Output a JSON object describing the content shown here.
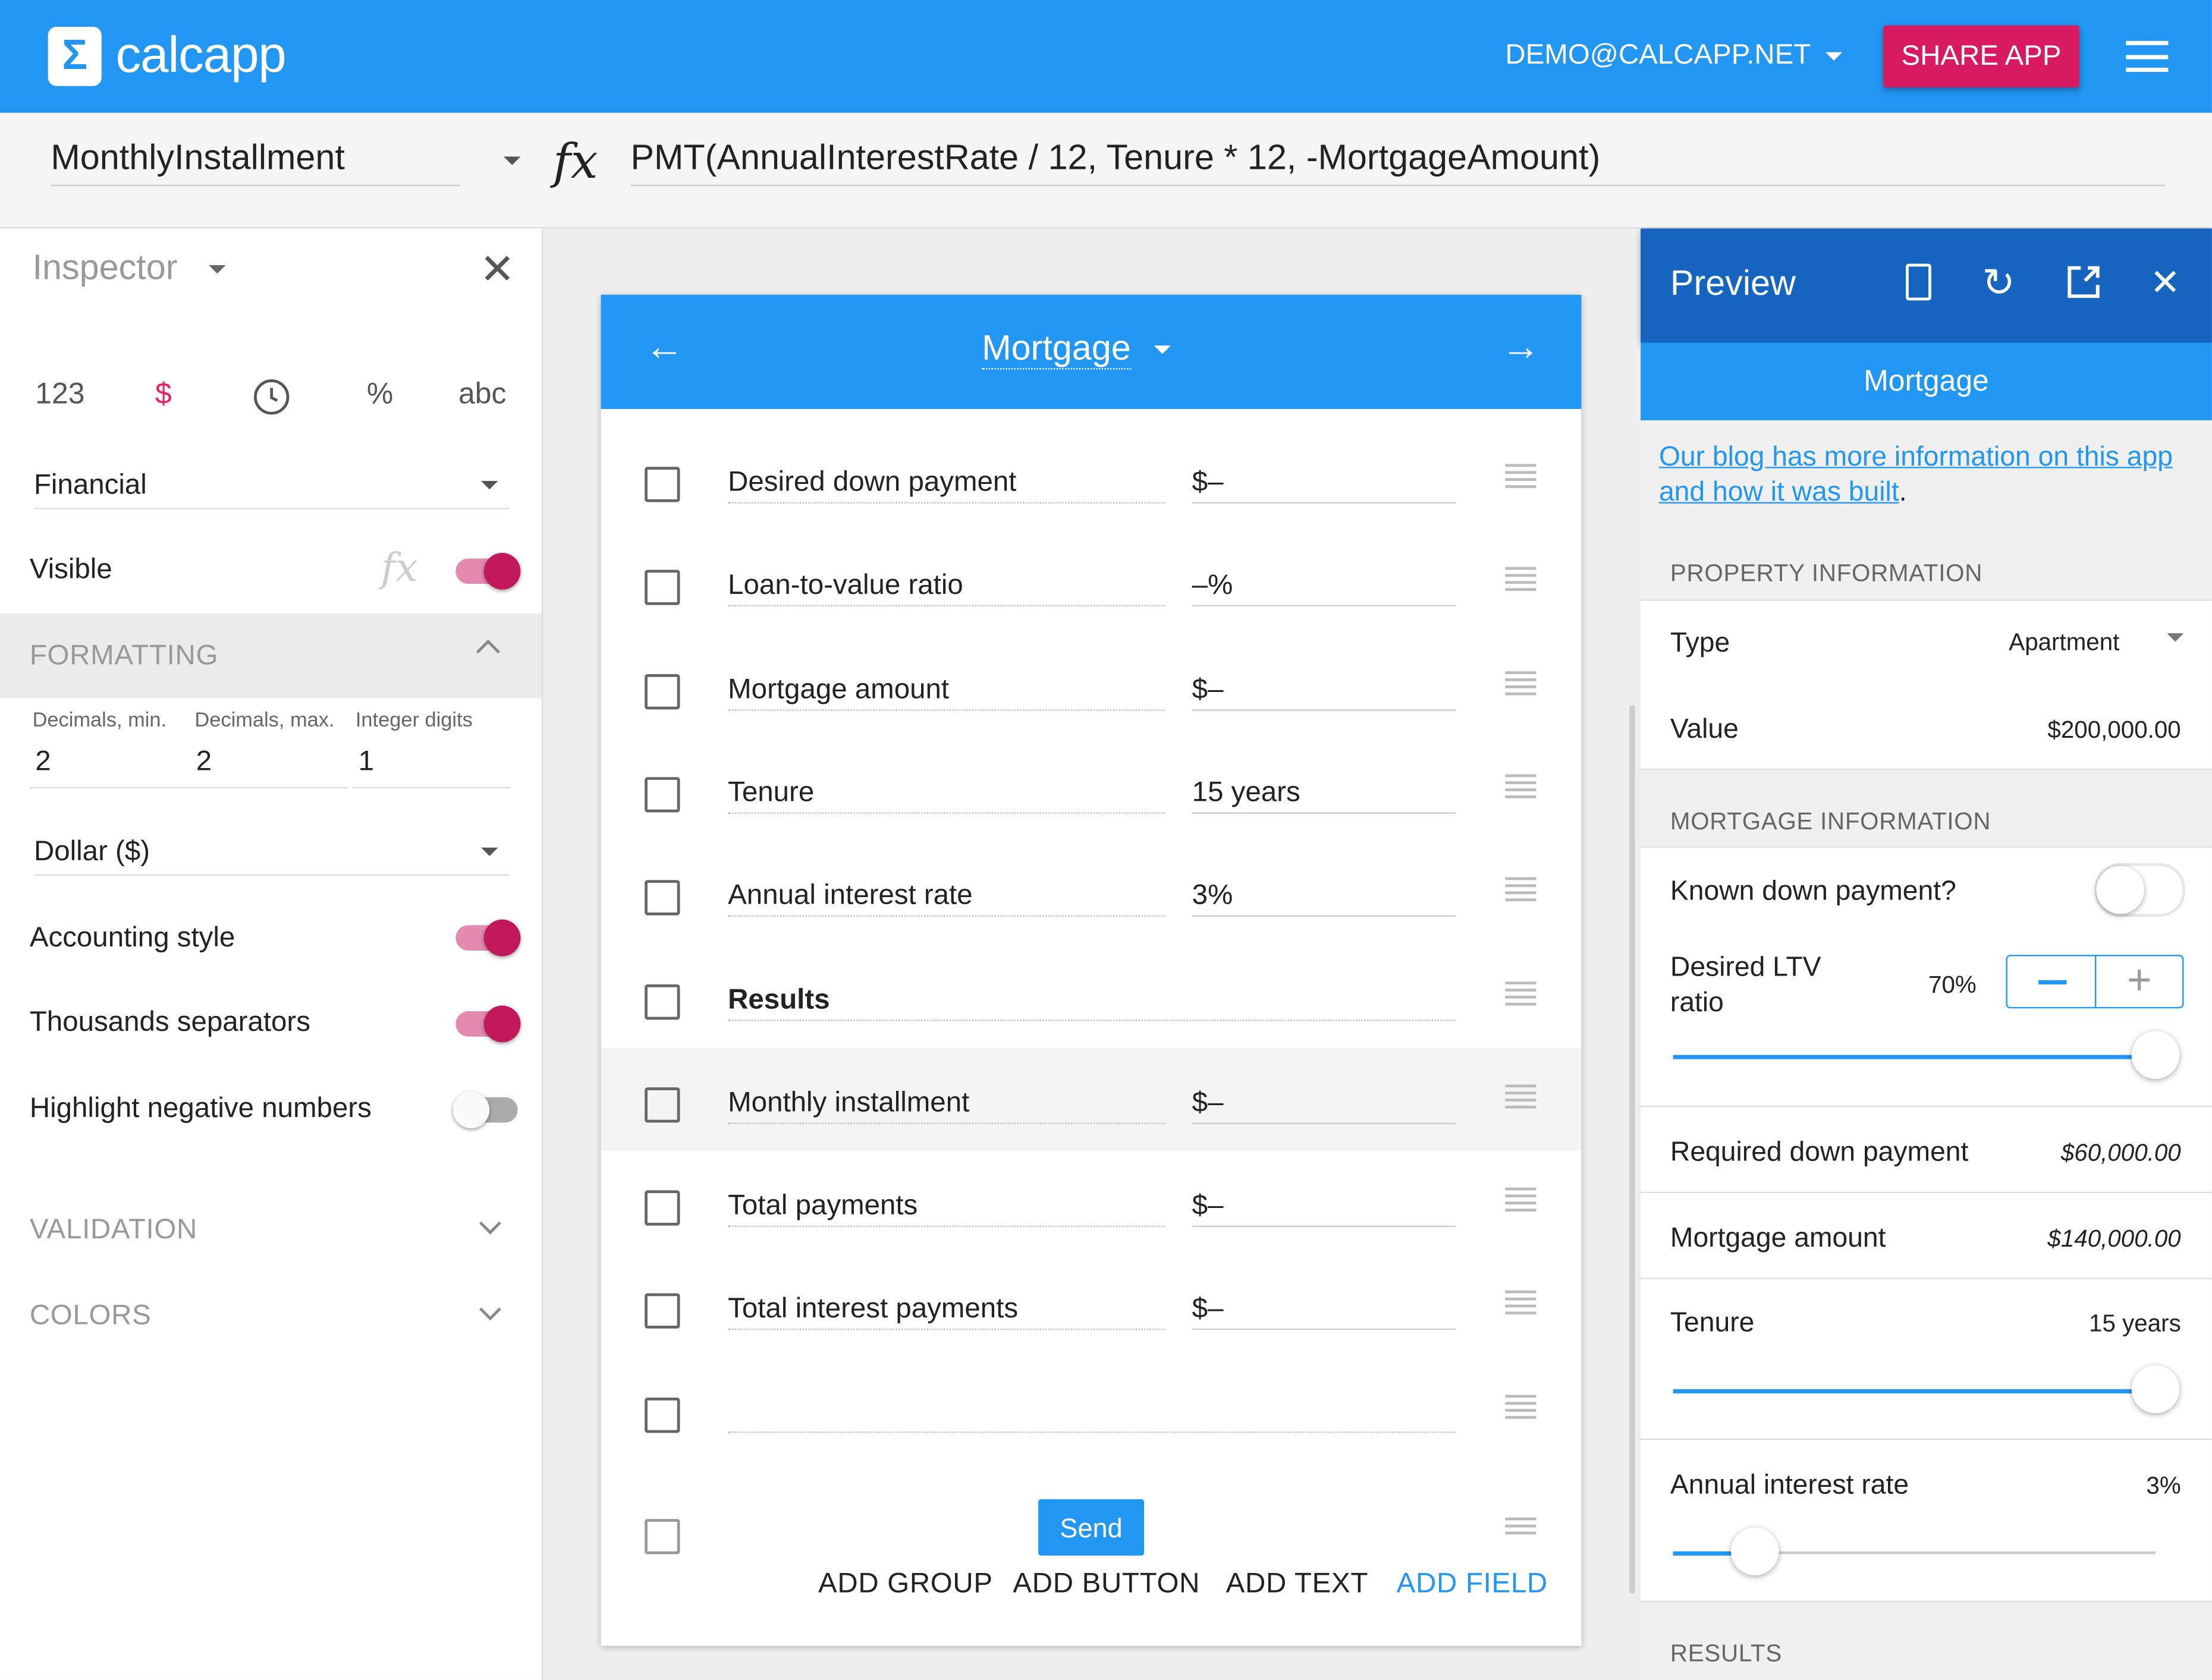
{
  "header": {
    "logo_symbol": "Σ",
    "app_name": "calcapp",
    "user": "DEMO@CALCAPP.NET",
    "share_label": "SHARE APP",
    "brand_color": "#2196F3",
    "accent_color": "#D81B60"
  },
  "formula_bar": {
    "field_name": "MonthlyInstallment",
    "fx": "fx",
    "formula": "PMT(AnnualInterestRate / 12, Tenure * 12, -MortgageAmount)"
  },
  "inspector": {
    "title": "Inspector",
    "types": [
      "123",
      "$",
      "clock-icon",
      "%",
      "abc"
    ],
    "selected_type": "$",
    "category": "Financial",
    "visible_label": "Visible",
    "visible": true,
    "formatting": {
      "title": "FORMATTING",
      "dec_min_label": "Decimals, min.",
      "dec_min": "2",
      "dec_max_label": "Decimals, max.",
      "dec_max": "2",
      "int_digits_label": "Integer digits",
      "int_digits": "1",
      "currency": "Dollar ($)",
      "accounting_label": "Accounting style",
      "accounting": true,
      "thousands_label": "Thousands separators",
      "thousands": true,
      "negative_label": "Highlight negative numbers",
      "negative": false
    },
    "validation": "VALIDATION",
    "colors": "COLORS"
  },
  "editor": {
    "screen_title": "Mortgage",
    "rows": [
      {
        "name": "Desired down payment",
        "value": "$–"
      },
      {
        "name": "Loan-to-value ratio",
        "value": "–%"
      },
      {
        "name": "Mortgage amount",
        "value": "$–"
      },
      {
        "name": "Tenure",
        "value": "15 years"
      },
      {
        "name": "Annual interest rate",
        "value": "3%"
      },
      {
        "name": "Results",
        "value": "",
        "bold": true
      },
      {
        "name": "Monthly installment",
        "value": "$–",
        "selected": true
      },
      {
        "name": "Total payments",
        "value": "$–"
      },
      {
        "name": "Total interest payments",
        "value": "$–"
      },
      {
        "name": "",
        "value": ""
      }
    ],
    "send_label": "Send",
    "add_group": "ADD GROUP",
    "add_button": "ADD BUTTON",
    "add_text": "ADD TEXT",
    "add_field": "ADD FIELD"
  },
  "preview": {
    "title": "Preview",
    "screen_title": "Mortgage",
    "blog_link": "Our blog has more information on this app and how it was built",
    "blog_period": ".",
    "property_section": "PROPERTY INFORMATION",
    "type_label": "Type",
    "type_value": "Apartment",
    "value_label": "Value",
    "value_value": "$200,000.00",
    "mortgage_section": "MORTGAGE INFORMATION",
    "known_label": "Known down payment?",
    "known": false,
    "ltv_label": "Desired LTV ratio",
    "ltv_value": "70%",
    "ltv_slider": 1.0,
    "required_label": "Required down payment",
    "required_value": "$60,000.00",
    "mortgage_label": "Mortgage amount",
    "mortgage_value": "$140,000.00",
    "tenure_label": "Tenure",
    "tenure_value": "15 years",
    "tenure_slider": 1.0,
    "rate_label": "Annual interest rate",
    "rate_value": "3%",
    "rate_slider": 0.17,
    "results_section": "RESULTS"
  }
}
